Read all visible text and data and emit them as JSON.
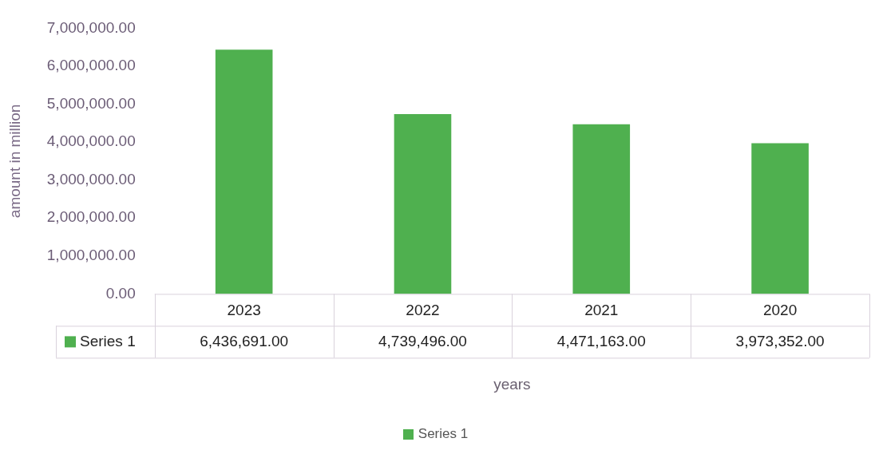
{
  "chart_data": {
    "type": "bar",
    "ylabel": "amount in million",
    "xlabel": "years",
    "categories": [
      "2023",
      "2022",
      "2021",
      "2020"
    ],
    "series": [
      {
        "name": "Series 1",
        "color": "#4fb04f",
        "values": [
          6436691,
          4739496,
          4471163,
          3973352
        ],
        "value_labels": [
          "6,436,691.00",
          "4,739,496.00",
          "4,471,163.00",
          "3,973,352.00"
        ]
      }
    ],
    "ylim": [
      0,
      7000000
    ],
    "yticks": [
      {
        "value": 0,
        "label": "0.00"
      },
      {
        "value": 1000000,
        "label": "1,000,000.00"
      },
      {
        "value": 2000000,
        "label": "2,000,000.00"
      },
      {
        "value": 3000000,
        "label": "3,000,000.00"
      },
      {
        "value": 4000000,
        "label": "4,000,000.00"
      },
      {
        "value": 5000000,
        "label": "5,000,000.00"
      },
      {
        "value": 6000000,
        "label": "6,000,000.00"
      },
      {
        "value": 7000000,
        "label": "7,000,000.00"
      }
    ],
    "grid": false,
    "legend": "bottom"
  }
}
